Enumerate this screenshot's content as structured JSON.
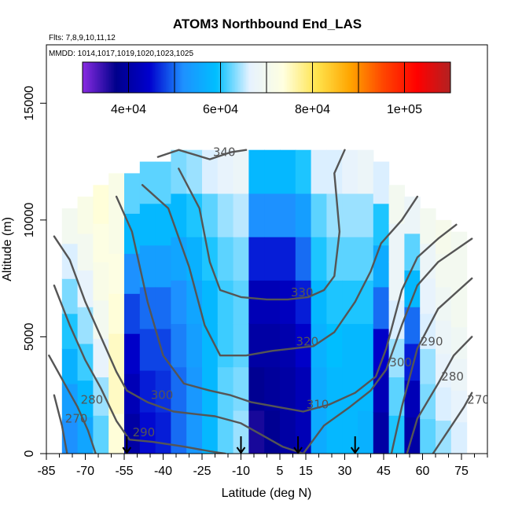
{
  "chart_data": {
    "type": "heatmap",
    "title": "ATOM3 Northbound End_LAS",
    "flights_note": "Flts: 7,8,9,10,11,12",
    "dates_note": "MMDD: 1014,1017,1019,1020,1023,1025",
    "xlabel": "Latitude (deg N)",
    "ylabel": "Altitude (m)",
    "xlim": [
      -85,
      85
    ],
    "ylim": [
      0,
      17500
    ],
    "x_ticks": [
      -85,
      -70,
      -55,
      -40,
      -25,
      -10,
      5,
      15,
      30,
      45,
      60,
      75
    ],
    "x_tick_labels": [
      "-85",
      "-70",
      "-55",
      "-40",
      "-25",
      "-10",
      "5",
      "15",
      "30",
      "45",
      "60",
      "75"
    ],
    "y_ticks": [
      0,
      5000,
      10000,
      15000
    ],
    "y_tick_labels": [
      "0",
      "5000",
      "10000",
      "15000"
    ],
    "colorbar": {
      "range": [
        30000,
        110000
      ],
      "ticks": [
        40000,
        60000,
        80000,
        100000
      ],
      "tick_labels": [
        "4e+04",
        "6e+04",
        "8e+04",
        "1e+05"
      ],
      "boundaries": [
        30000,
        40000,
        50000,
        60000,
        70000,
        80000,
        90000,
        100000,
        110000
      ],
      "colors": [
        "#8a2be2",
        "#00008b",
        "#0000cd",
        "#1e90ff",
        "#00bfff",
        "#e6f2ff",
        "#ffffe0",
        "#ffe44d",
        "#ffa500",
        "#ff4500",
        "#ff0000",
        "#b22222"
      ]
    },
    "field_columns": [
      {
        "lat": -76,
        "top": 10500,
        "values": [
          52000,
          54000,
          57000,
          60000,
          63000,
          66000,
          70000
        ]
      },
      {
        "lat": -70,
        "top": 11000,
        "values": [
          55000,
          58000,
          61000,
          64000,
          67000,
          70000,
          72000
        ]
      },
      {
        "lat": -64,
        "top": 11500,
        "values": [
          62000,
          64000,
          67000,
          70000,
          72000,
          73000,
          74000
        ]
      },
      {
        "lat": -58,
        "top": 12000,
        "values": [
          74000,
          75000,
          75000,
          74000,
          73000,
          72000,
          72000
        ]
      },
      {
        "lat": -52,
        "top": 12000,
        "values": [
          40000,
          42000,
          44000,
          48000,
          52000,
          58000,
          62000
        ]
      },
      {
        "lat": -46,
        "top": 12500,
        "values": [
          45000,
          46000,
          48000,
          50000,
          54000,
          58000,
          62000
        ]
      },
      {
        "lat": -40,
        "top": 12500,
        "values": [
          46000,
          47000,
          48000,
          50000,
          54000,
          58000,
          62000
        ]
      },
      {
        "lat": -34,
        "top": 13000,
        "values": [
          50000,
          50000,
          51000,
          52000,
          55000,
          58000,
          63000
        ]
      },
      {
        "lat": -28,
        "top": 13000,
        "values": [
          53000,
          53000,
          54000,
          55000,
          57000,
          60000,
          64000
        ]
      },
      {
        "lat": -22,
        "top": 13000,
        "values": [
          58000,
          58000,
          58000,
          58000,
          60000,
          62000,
          66000
        ]
      },
      {
        "lat": -16,
        "top": 13000,
        "values": [
          62000,
          62000,
          61000,
          61000,
          62000,
          64000,
          67000
        ]
      },
      {
        "lat": -10,
        "top": 13000,
        "values": [
          64000,
          63000,
          62000,
          62000,
          63000,
          65000,
          68000
        ]
      },
      {
        "lat": -4,
        "top": 13000,
        "values": [
          36000,
          38000,
          40000,
          42000,
          46000,
          52000,
          58000
        ]
      },
      {
        "lat": 2,
        "top": 13000,
        "values": [
          38000,
          39000,
          40000,
          42000,
          46000,
          52000,
          58000
        ]
      },
      {
        "lat": 8,
        "top": 13000,
        "values": [
          40000,
          40000,
          41000,
          43000,
          46000,
          52000,
          58000
        ]
      },
      {
        "lat": 14,
        "top": 13000,
        "values": [
          42000,
          42000,
          44000,
          46000,
          50000,
          54000,
          60000
        ]
      },
      {
        "lat": 20,
        "top": 13000,
        "values": [
          56000,
          56000,
          57000,
          58000,
          60000,
          62000,
          66000
        ]
      },
      {
        "lat": 26,
        "top": 13000,
        "values": [
          58000,
          58000,
          59000,
          60000,
          62000,
          64000,
          66000
        ]
      },
      {
        "lat": 32,
        "top": 13000,
        "values": [
          58000,
          58000,
          58000,
          60000,
          62000,
          64000,
          67000
        ]
      },
      {
        "lat": 38,
        "top": 13000,
        "values": [
          57000,
          58000,
          58000,
          60000,
          62000,
          64000,
          68000
        ]
      },
      {
        "lat": 44,
        "top": 12500,
        "values": [
          40000,
          42000,
          44000,
          50000,
          56000,
          60000,
          66000
        ]
      },
      {
        "lat": 50,
        "top": 11500,
        "values": [
          60000,
          62000,
          64000,
          66000,
          68000,
          68000,
          70000
        ]
      },
      {
        "lat": 56,
        "top": 11000,
        "values": [
          40000,
          42000,
          46000,
          50000,
          58000,
          62000,
          68000
        ]
      },
      {
        "lat": 62,
        "top": 10500,
        "values": [
          62000,
          63000,
          64000,
          66000,
          67000,
          68000,
          70000
        ]
      },
      {
        "lat": 68,
        "top": 10000,
        "values": [
          64000,
          66000,
          67000,
          68000,
          69000,
          70000,
          71000
        ]
      },
      {
        "lat": 74,
        "top": 9500,
        "values": [
          66000,
          67000,
          68000,
          69000,
          70000,
          70000,
          70000
        ]
      }
    ],
    "contours": [
      {
        "level": 270,
        "label": "270",
        "points": [
          [
            -82,
            2500
          ],
          [
            -79,
            1200
          ],
          [
            -77,
            0
          ]
        ]
      },
      {
        "level": 270,
        "label": "270",
        "points": [
          [
            64,
            0
          ],
          [
            70,
            1000
          ],
          [
            76,
            2000
          ],
          [
            79,
            2600
          ]
        ]
      },
      {
        "level": 280,
        "label": "280",
        "points": [
          [
            -84,
            4200
          ],
          [
            -78,
            3000
          ],
          [
            -73,
            2000
          ],
          [
            -69,
            1000
          ],
          [
            -66,
            0
          ]
        ]
      },
      {
        "level": 280,
        "label": "280",
        "points": [
          [
            54,
            0
          ],
          [
            58,
            1500
          ],
          [
            66,
            3000
          ],
          [
            72,
            4200
          ],
          [
            79,
            5000
          ]
        ]
      },
      {
        "level": 290,
        "label": "290",
        "points": [
          [
            -82,
            7200
          ],
          [
            -76,
            5500
          ],
          [
            -70,
            4000
          ],
          [
            -64,
            2800
          ],
          [
            -58,
            1400
          ],
          [
            -53,
            600
          ],
          [
            -44,
            500
          ],
          [
            -32,
            300
          ],
          [
            -22,
            100
          ],
          [
            -16,
            0
          ]
        ]
      },
      {
        "level": 290,
        "label": "290",
        "points": [
          [
            48,
            0
          ],
          [
            52,
            2000
          ],
          [
            58,
            4500
          ],
          [
            66,
            6200
          ],
          [
            79,
            7500
          ]
        ]
      },
      {
        "level": 300,
        "label": "300",
        "points": [
          [
            -82,
            9300
          ],
          [
            -76,
            8300
          ],
          [
            -70,
            6500
          ],
          [
            -64,
            5000
          ],
          [
            -58,
            3500
          ],
          [
            -54,
            2700
          ],
          [
            -46,
            2200
          ],
          [
            -36,
            1800
          ],
          [
            -20,
            1600
          ],
          [
            -10,
            1300
          ],
          [
            -2,
            800
          ],
          [
            6,
            300
          ],
          [
            14,
            0
          ]
        ]
      },
      {
        "level": 300,
        "label": "300",
        "points": [
          [
            14,
            0
          ],
          [
            22,
            1200
          ],
          [
            32,
            2000
          ],
          [
            40,
            2700
          ],
          [
            46,
            3600
          ],
          [
            52,
            5500
          ],
          [
            58,
            7200
          ],
          [
            66,
            8200
          ],
          [
            79,
            9200
          ]
        ]
      },
      {
        "level": 310,
        "label": "310",
        "points": [
          [
            -58,
            11000
          ],
          [
            -52,
            9500
          ],
          [
            -46,
            6500
          ],
          [
            -40,
            4200
          ],
          [
            -32,
            3000
          ],
          [
            -22,
            2700
          ],
          [
            -14,
            2500
          ],
          [
            -6,
            2200
          ],
          [
            4,
            2000
          ],
          [
            14,
            1800
          ],
          [
            24,
            2100
          ],
          [
            34,
            2600
          ],
          [
            42,
            3300
          ],
          [
            46,
            4500
          ],
          [
            52,
            7000
          ],
          [
            58,
            8400
          ],
          [
            66,
            9200
          ],
          [
            73,
            9800
          ]
        ]
      },
      {
        "level": 320,
        "label": "320",
        "points": [
          [
            -48,
            11500
          ],
          [
            -38,
            10500
          ],
          [
            -30,
            8000
          ],
          [
            -24,
            5500
          ],
          [
            -18,
            4200
          ],
          [
            -8,
            4200
          ],
          [
            2,
            4400
          ],
          [
            10,
            4500
          ],
          [
            18,
            4600
          ],
          [
            26,
            5200
          ],
          [
            34,
            6500
          ],
          [
            40,
            7800
          ],
          [
            44,
            9000
          ],
          [
            52,
            10000
          ],
          [
            58,
            11000
          ]
        ]
      },
      {
        "level": 330,
        "label": "330",
        "points": [
          [
            -34,
            12200
          ],
          [
            -26,
            10500
          ],
          [
            -22,
            8200
          ],
          [
            -18,
            7000
          ],
          [
            -10,
            6700
          ],
          [
            0,
            6600
          ],
          [
            8,
            6600
          ],
          [
            16,
            6700
          ],
          [
            22,
            7000
          ],
          [
            26,
            7600
          ],
          [
            28,
            9500
          ],
          [
            26,
            12000
          ],
          [
            30,
            13000
          ]
        ]
      },
      {
        "level": 340,
        "label": "340",
        "points": [
          [
            -42,
            12700
          ],
          [
            -34,
            13000
          ],
          [
            -22,
            12600
          ],
          [
            -14,
            12900
          ],
          [
            -8,
            13000
          ]
        ]
      }
    ],
    "arrows": [
      -54,
      -10,
      12,
      34
    ]
  }
}
